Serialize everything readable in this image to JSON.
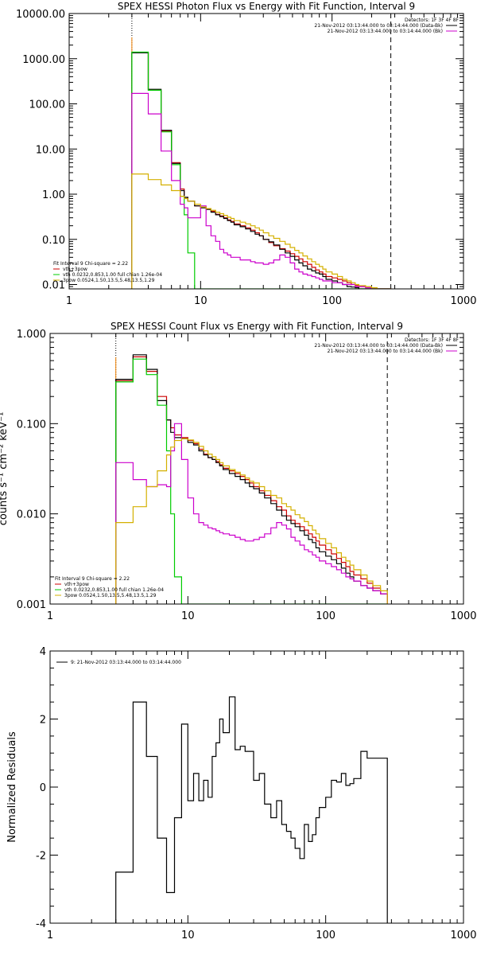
{
  "chart_data": [
    {
      "type": "line",
      "title": "SPEX HESSI Photon Flux vs Energy with Fit Function, Interval 9",
      "xscale": "log",
      "yscale": "log",
      "xlim": [
        1,
        1000
      ],
      "ylim": [
        0.008,
        10000
      ],
      "xticks": [
        "1",
        "10",
        "100",
        "1000"
      ],
      "yticks": [
        {
          "v": 10000,
          "label": "10000.00"
        },
        {
          "v": 1000,
          "label": "1000.00"
        },
        {
          "v": 100,
          "label": "100.00"
        },
        {
          "v": 10,
          "label": "10.00"
        },
        {
          "v": 1,
          "label": "1.00"
        },
        {
          "v": 0.1,
          "label": "0.10"
        },
        {
          "v": 0.01,
          "label": "0.01"
        }
      ],
      "vlines": [
        {
          "x": 3,
          "style": "dotted"
        },
        {
          "x": 280,
          "style": "dashed"
        }
      ],
      "legend_top": [
        {
          "text": "Detectors: 1F 3F 4F 8F",
          "color": "#000000"
        },
        {
          "text": "21-Nov-2012 03:13:44.000 to 03:14:44.000 (Data-Bk)",
          "color": "#000000",
          "swatch": true
        },
        {
          "text": "21-Nov-2012 03:13:44.000 to 03:14:44.000 (Bk)",
          "color": "#cc00cc",
          "swatch": true
        }
      ],
      "legend_bottom": [
        {
          "text": "Fit Interval 9   Chi-square = 2.22",
          "color": "#000000"
        },
        {
          "text": "vth+3pow",
          "color": "#cc0000",
          "swatch": true
        },
        {
          "text": "vth 0.0232,0.853,1.00  full chian 1.26e-04",
          "color": "#00cc00",
          "swatch": true
        },
        {
          "text": "3pow 0.0524,1.50,13.5,5.48,13.5,1.29",
          "color": "#d4b000",
          "swatch": true
        }
      ],
      "bin_edges": [
        3,
        3.5,
        4,
        4.5,
        5,
        5.5,
        6,
        6.5,
        7,
        7.5,
        8,
        9,
        10,
        11,
        12,
        13,
        14,
        15,
        16,
        17,
        18,
        20,
        22,
        24,
        26,
        28,
        30,
        33,
        36,
        40,
        44,
        48,
        52,
        56,
        60,
        65,
        70,
        75,
        80,
        85,
        90,
        100,
        110,
        120,
        130,
        140,
        150,
        160,
        180,
        200,
        220,
        250,
        280
      ],
      "series": [
        {
          "color": "#cc0000",
          "values": [
            1350,
            1350,
            200,
            200,
            25,
            25,
            5,
            5,
            1.3,
            0.85,
            0.7,
            0.55,
            0.52,
            0.48,
            0.42,
            0.36,
            0.33,
            0.3,
            0.27,
            0.25,
            0.22,
            0.2,
            0.18,
            0.16,
            0.14,
            0.12,
            0.1,
            0.085,
            0.072,
            0.062,
            0.055,
            0.048,
            0.042,
            0.037,
            0.032,
            0.028,
            0.024,
            0.021,
            0.019,
            0.017,
            0.015,
            0.014,
            0.013,
            0.012,
            0.011,
            0.01,
            0.0095,
            0.009,
            0.0085,
            0.008,
            0.008,
            0.008
          ]
        },
        {
          "color": "#000000",
          "values": [
            1350,
            1350,
            210,
            210,
            26,
            26,
            4.8,
            4.8,
            1.2,
            0.85,
            0.7,
            0.55,
            0.5,
            0.46,
            0.4,
            0.35,
            0.32,
            0.29,
            0.26,
            0.24,
            0.21,
            0.19,
            0.17,
            0.15,
            0.13,
            0.12,
            0.1,
            0.088,
            0.075,
            0.06,
            0.05,
            0.042,
            0.035,
            0.03,
            0.026,
            0.022,
            0.02,
            0.018,
            0.017,
            0.015,
            0.013,
            0.012,
            0.011,
            0.01,
            0.009,
            0.0088,
            0.0085,
            0.008,
            0.008,
            0.008,
            0.008,
            0.008
          ]
        },
        {
          "color": "#00cc00",
          "values": [
            1400,
            1400,
            200,
            200,
            24,
            24,
            4.5,
            4.5,
            0.9,
            0.35,
            0.05,
            0.008,
            0.008,
            0.008,
            0.008,
            0.008,
            0.008,
            0.008,
            0.008,
            0.008,
            0.008,
            0.008,
            0.008,
            0.008,
            0.008,
            0.008,
            0.008,
            0.008,
            0.008,
            0.008,
            0.008,
            0.008,
            0.008,
            0.008,
            0.008,
            0.008,
            0.008,
            0.008,
            0.008,
            0.008,
            0.008,
            0.008,
            0.008,
            0.008,
            0.008,
            0.008,
            0.008,
            0.008,
            0.008,
            0.008,
            0.008,
            0.008
          ]
        },
        {
          "color": "#cc00cc",
          "values": [
            170,
            170,
            60,
            60,
            9,
            9,
            2,
            2,
            0.6,
            0.5,
            0.3,
            0.3,
            0.55,
            0.2,
            0.12,
            0.09,
            0.06,
            0.05,
            0.045,
            0.04,
            0.04,
            0.035,
            0.035,
            0.032,
            0.03,
            0.03,
            0.028,
            0.03,
            0.035,
            0.045,
            0.04,
            0.03,
            0.022,
            0.019,
            0.017,
            0.016,
            0.015,
            0.014,
            0.013,
            0.012,
            0.012,
            0.011,
            0.011,
            0.01,
            0.01,
            0.01,
            0.009,
            0.009,
            0.0085,
            0.008,
            0.008,
            0.008
          ]
        },
        {
          "color": "#d4b000",
          "values": [
            2.8,
            2.8,
            2.1,
            2.1,
            1.6,
            1.6,
            1.2,
            1.2,
            0.9,
            0.8,
            0.7,
            0.6,
            0.52,
            0.48,
            0.44,
            0.4,
            0.37,
            0.34,
            0.31,
            0.29,
            0.26,
            0.24,
            0.22,
            0.2,
            0.18,
            0.16,
            0.14,
            0.12,
            0.105,
            0.09,
            0.078,
            0.066,
            0.057,
            0.05,
            0.043,
            0.037,
            0.032,
            0.028,
            0.025,
            0.022,
            0.019,
            0.017,
            0.015,
            0.013,
            0.012,
            0.011,
            0.01,
            0.0095,
            0.009,
            0.0085,
            0.008,
            0.008
          ]
        }
      ]
    },
    {
      "type": "line",
      "title": "SPEX HESSI Count Flux vs Energy with Fit Function, Interval 9",
      "ylabel": "counts s⁻¹ cm⁻² keV⁻¹",
      "xscale": "log",
      "yscale": "log",
      "xlim": [
        1,
        1000
      ],
      "ylim": [
        0.001,
        1.0
      ],
      "xticks": [
        "1",
        "10",
        "100",
        "1000"
      ],
      "yticks": [
        {
          "v": 1,
          "label": "1.000"
        },
        {
          "v": 0.1,
          "label": "0.100"
        },
        {
          "v": 0.01,
          "label": "0.010"
        },
        {
          "v": 0.001,
          "label": "0.001"
        }
      ],
      "vlines": [
        {
          "x": 3,
          "style": "dotted"
        },
        {
          "x": 280,
          "style": "dashed"
        }
      ],
      "legend_top": [
        {
          "text": "Detectors: 1F 3F 4F 8F",
          "color": "#000000"
        },
        {
          "text": "21-Nov-2012 03:13:44.000 to 03:14:44.000 (Data-Bk)",
          "color": "#000000",
          "swatch": true
        },
        {
          "text": "21-Nov-2012 03:13:44.000 to 03:14:44.000 (Bk)",
          "color": "#cc00cc",
          "swatch": true
        }
      ],
      "legend_bottom": [
        {
          "text": "Fit Interval 9   Chi-square = 2.22",
          "color": "#000000"
        },
        {
          "text": "vth+3pow",
          "color": "#cc0000",
          "swatch": true
        },
        {
          "text": "vth 0.0232,0.853,1.00  full chian 1.26e-04",
          "color": "#00cc00",
          "swatch": true
        },
        {
          "text": "3pow 0.0524,1.50,13.5,5.48,13.5,1.29",
          "color": "#d4b000",
          "swatch": true
        }
      ],
      "bin_edges": [
        3,
        3.5,
        4,
        4.5,
        5,
        5.5,
        6,
        6.5,
        7,
        7.5,
        8,
        9,
        10,
        11,
        12,
        13,
        14,
        15,
        16,
        17,
        18,
        20,
        22,
        24,
        26,
        28,
        30,
        33,
        36,
        40,
        44,
        48,
        52,
        56,
        60,
        65,
        70,
        75,
        80,
        85,
        90,
        100,
        110,
        120,
        130,
        140,
        150,
        160,
        180,
        200,
        220,
        250,
        280
      ],
      "series": [
        {
          "color": "#cc0000",
          "values": [
            0.3,
            0.3,
            0.55,
            0.55,
            0.38,
            0.38,
            0.2,
            0.2,
            0.11,
            0.09,
            0.075,
            0.07,
            0.065,
            0.06,
            0.052,
            0.046,
            0.042,
            0.04,
            0.038,
            0.035,
            0.032,
            0.03,
            0.028,
            0.026,
            0.024,
            0.022,
            0.02,
            0.018,
            0.016,
            0.014,
            0.012,
            0.011,
            0.0095,
            0.0085,
            0.0078,
            0.0072,
            0.0066,
            0.006,
            0.0055,
            0.005,
            0.0045,
            0.004,
            0.0036,
            0.0032,
            0.0029,
            0.0026,
            0.0023,
            0.0021,
            0.0019,
            0.0017,
            0.0015,
            0.0013
          ]
        },
        {
          "color": "#000000",
          "values": [
            0.31,
            0.31,
            0.58,
            0.58,
            0.4,
            0.4,
            0.18,
            0.18,
            0.11,
            0.08,
            0.07,
            0.068,
            0.062,
            0.058,
            0.05,
            0.045,
            0.042,
            0.04,
            0.037,
            0.034,
            0.031,
            0.028,
            0.026,
            0.024,
            0.022,
            0.02,
            0.019,
            0.017,
            0.015,
            0.013,
            0.011,
            0.0095,
            0.0085,
            0.0078,
            0.0072,
            0.0065,
            0.0058,
            0.0052,
            0.0048,
            0.0042,
            0.0038,
            0.0034,
            0.0031,
            0.0028,
            0.0025,
            0.0022,
            0.002,
            0.0018,
            0.0016,
            0.0015,
            0.0014,
            0.0013
          ]
        },
        {
          "color": "#00cc00",
          "values": [
            0.29,
            0.29,
            0.52,
            0.52,
            0.35,
            0.35,
            0.16,
            0.16,
            0.05,
            0.01,
            0.002,
            0.0008,
            0.0008,
            0.0008,
            0.0008,
            0.0008,
            0.0008,
            0.0008,
            0.0008,
            0.0008,
            0.0008,
            0.0008,
            0.0008,
            0.0008,
            0.0008,
            0.0008,
            0.0008,
            0.0008,
            0.0008,
            0.0008,
            0.0008,
            0.0008,
            0.0008,
            0.0008,
            0.0008,
            0.0008,
            0.0008,
            0.0008,
            0.0008,
            0.0008,
            0.0008,
            0.0008,
            0.0008,
            0.0008,
            0.0008,
            0.0008,
            0.0008,
            0.0008,
            0.0008,
            0.0008,
            0.0008,
            0.0008
          ]
        },
        {
          "color": "#cc00cc",
          "values": [
            0.037,
            0.037,
            0.024,
            0.024,
            0.02,
            0.02,
            0.021,
            0.021,
            0.02,
            0.05,
            0.1,
            0.04,
            0.015,
            0.01,
            0.008,
            0.0075,
            0.007,
            0.0068,
            0.0065,
            0.0062,
            0.006,
            0.0058,
            0.0055,
            0.0052,
            0.005,
            0.005,
            0.0052,
            0.0055,
            0.006,
            0.007,
            0.008,
            0.0075,
            0.0068,
            0.0055,
            0.005,
            0.0045,
            0.004,
            0.0038,
            0.0035,
            0.0033,
            0.003,
            0.0028,
            0.0026,
            0.0024,
            0.0022,
            0.002,
            0.0019,
            0.0018,
            0.0016,
            0.0015,
            0.0014,
            0.0013
          ]
        },
        {
          "color": "#d4b000",
          "values": [
            0.008,
            0.008,
            0.012,
            0.012,
            0.02,
            0.02,
            0.03,
            0.03,
            0.045,
            0.055,
            0.065,
            0.068,
            0.066,
            0.062,
            0.056,
            0.05,
            0.046,
            0.043,
            0.04,
            0.037,
            0.034,
            0.031,
            0.029,
            0.027,
            0.025,
            0.023,
            0.022,
            0.02,
            0.018,
            0.016,
            0.015,
            0.013,
            0.012,
            0.011,
            0.0098,
            0.009,
            0.0082,
            0.0074,
            0.0066,
            0.006,
            0.0053,
            0.0047,
            0.0042,
            0.0037,
            0.0033,
            0.003,
            0.0027,
            0.0024,
            0.0021,
            0.0018,
            0.0016,
            0.0014
          ]
        }
      ]
    },
    {
      "type": "line",
      "ylabel": "Normalized Residuals",
      "xscale": "log",
      "yscale": "linear",
      "xlim": [
        1,
        1000
      ],
      "ylim": [
        -4,
        4
      ],
      "xticks": [
        "1",
        "10",
        "100",
        "1000"
      ],
      "yticks": [
        {
          "v": 4,
          "label": "4"
        },
        {
          "v": 2,
          "label": "2"
        },
        {
          "v": 0,
          "label": "0"
        },
        {
          "v": -2,
          "label": "-2"
        },
        {
          "v": -4,
          "label": "-4"
        }
      ],
      "legend_top": [
        {
          "text": "9: 21-Nov-2012 03:13:44.000 to 03:14:44.000",
          "color": "#000000",
          "swatch": true
        }
      ],
      "bin_edges": [
        3,
        3.5,
        4,
        4.5,
        5,
        5.5,
        6,
        6.5,
        7,
        7.5,
        8,
        9,
        10,
        11,
        12,
        13,
        14,
        15,
        16,
        17,
        18,
        20,
        22,
        24,
        26,
        28,
        30,
        33,
        36,
        40,
        44,
        48,
        52,
        56,
        60,
        65,
        70,
        75,
        80,
        85,
        90,
        100,
        110,
        120,
        130,
        140,
        150,
        160,
        180,
        200,
        220,
        250,
        280
      ],
      "series": [
        {
          "color": "#000000",
          "values": [
            -2.5,
            -2.5,
            2.5,
            2.5,
            0.9,
            0.9,
            -1.5,
            -1.5,
            -3.1,
            -3.1,
            -0.9,
            1.85,
            -0.4,
            0.4,
            -0.4,
            0.2,
            -0.3,
            0.9,
            1.3,
            2.0,
            1.6,
            2.65,
            1.1,
            1.2,
            1.05,
            1.05,
            0.2,
            0.4,
            -0.5,
            -0.9,
            -0.4,
            -1.1,
            -1.3,
            -1.5,
            -1.8,
            -2.1,
            -1.1,
            -1.6,
            -1.4,
            -0.9,
            -0.6,
            -0.3,
            0.2,
            0.15,
            0.4,
            0.05,
            0.1,
            0.25,
            1.05,
            0.85,
            0.85,
            0.85
          ]
        }
      ]
    }
  ]
}
